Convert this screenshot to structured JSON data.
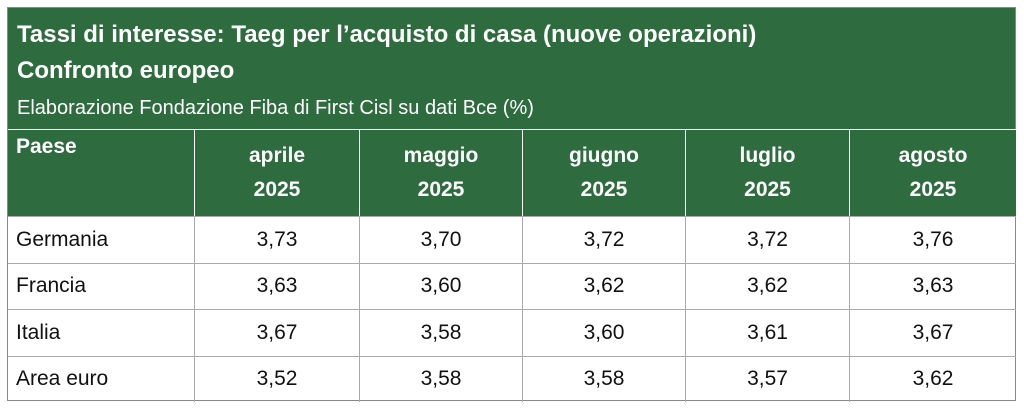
{
  "header": {
    "title_lines": [
      "Tassi di interesse: Taeg per l’acquisto di casa (nuove operazioni)",
      "Confronto europeo"
    ],
    "subtitle": "Elaborazione Fondazione Fiba di First Cisl su dati Bce (%)"
  },
  "table": {
    "first_column_header": "Paese",
    "columns": [
      {
        "month": "aprile",
        "year": "2025"
      },
      {
        "month": "maggio",
        "year": "2025"
      },
      {
        "month": "giugno",
        "year": "2025"
      },
      {
        "month": "luglio",
        "year": "2025"
      },
      {
        "month": "agosto",
        "year": "2025"
      }
    ],
    "rows": [
      [
        "Germania",
        "3,73",
        "3,70",
        "3,72",
        "3,72",
        "3,76"
      ],
      [
        "Francia",
        "3,63",
        "3,60",
        "3,62",
        "3,62",
        "3,63"
      ],
      [
        "Italia",
        "3,67",
        "3,58",
        "3,60",
        "3,61",
        "3,67"
      ],
      [
        "Area euro",
        "3,52",
        "3,58",
        "3,58",
        "3,57",
        "3,62"
      ]
    ]
  }
}
